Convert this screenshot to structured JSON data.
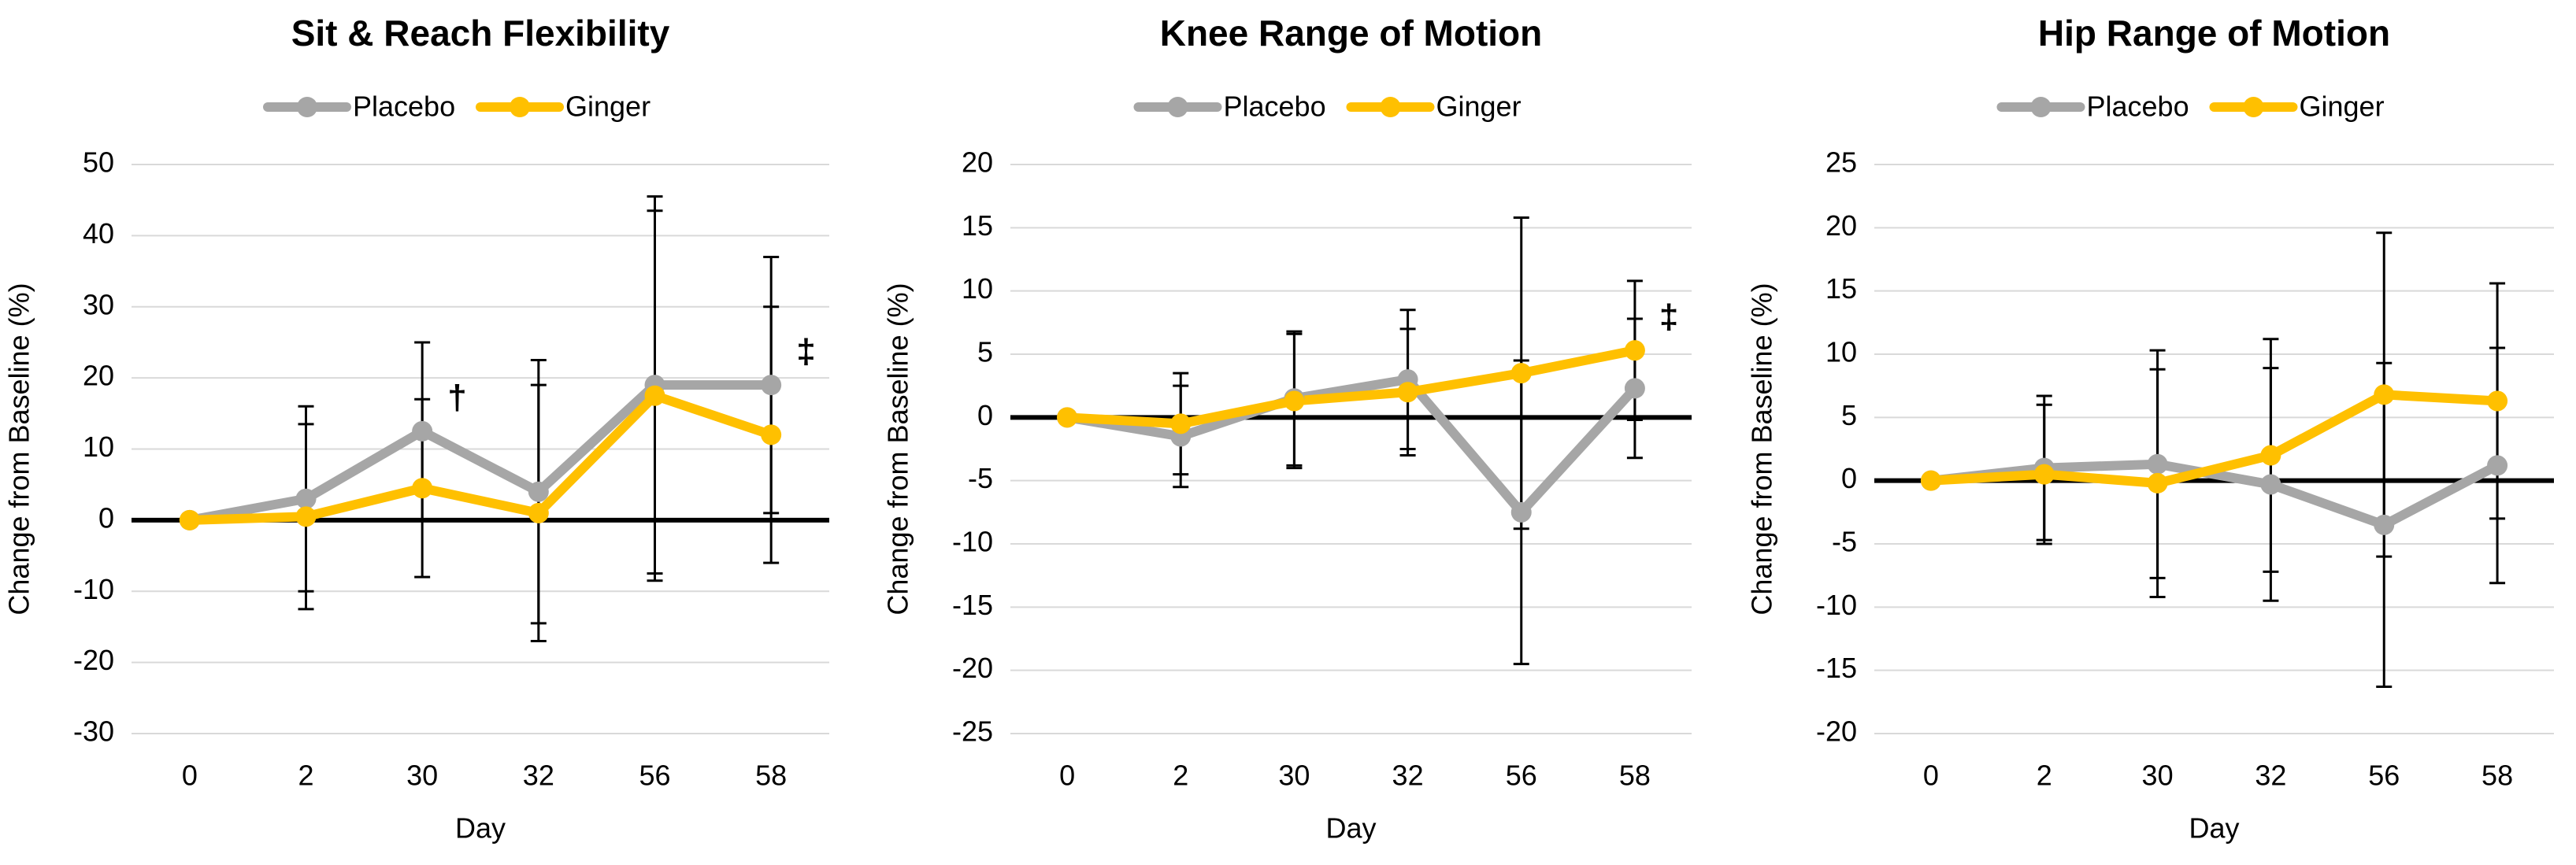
{
  "chart_data": [
    {
      "type": "line",
      "title": "Sit & Reach Flexibility",
      "x_label": "Day",
      "y_label": "Change from Baseline (%)",
      "categories": [
        "0",
        "2",
        "30",
        "32",
        "56",
        "58"
      ],
      "ylim": [
        -30,
        50
      ],
      "yticks": [
        -30,
        -20,
        -10,
        0,
        10,
        20,
        30,
        40,
        50
      ],
      "grid": true,
      "series": [
        {
          "name": "Placebo",
          "color": "#a6a6a6",
          "values": [
            0,
            3,
            12.5,
            4,
            19,
            19
          ],
          "errors": [
            0,
            13,
            12.5,
            18.5,
            26.5,
            18
          ]
        },
        {
          "name": "Ginger",
          "color": "#ffc000",
          "values": [
            0,
            0.5,
            4.5,
            1,
            17.5,
            12
          ],
          "errors": [
            0,
            13,
            12.5,
            18,
            26,
            18
          ]
        }
      ],
      "annotations": [
        {
          "text": "†",
          "color": "#a6a6a6",
          "x": "30"
        },
        {
          "text": "‡",
          "color": "#a6a6a6",
          "x": "58"
        }
      ]
    },
    {
      "type": "line",
      "title": "Knee Range of Motion",
      "x_label": "Day",
      "y_label": "Change from Baseline (%)",
      "categories": [
        "0",
        "2",
        "30",
        "32",
        "56",
        "58"
      ],
      "ylim": [
        -25,
        20
      ],
      "yticks": [
        -25,
        -20,
        -15,
        -10,
        -5,
        0,
        5,
        10,
        15,
        20
      ],
      "grid": true,
      "series": [
        {
          "name": "Placebo",
          "color": "#a6a6a6",
          "values": [
            0,
            -1.5,
            1.5,
            3,
            -7.5,
            2.3
          ],
          "errors": [
            0,
            4,
            5.3,
            5.5,
            12,
            5.5
          ]
        },
        {
          "name": "Ginger",
          "color": "#ffc000",
          "values": [
            0,
            -0.5,
            1.3,
            2,
            3.5,
            5.3
          ],
          "errors": [
            0,
            4,
            5.3,
            5,
            12.3,
            5.5
          ]
        }
      ],
      "annotations": [
        {
          "text": "‡",
          "color": "#ffc000",
          "x": "58"
        }
      ]
    },
    {
      "type": "line",
      "title": "Hip Range of Motion",
      "x_label": "Day",
      "y_label": "Change from Baseline (%)",
      "categories": [
        "0",
        "2",
        "30",
        "32",
        "56",
        "58"
      ],
      "ylim": [
        -20,
        25
      ],
      "yticks": [
        -20,
        -15,
        -10,
        -5,
        0,
        5,
        10,
        15,
        20,
        25
      ],
      "grid": true,
      "series": [
        {
          "name": "Placebo",
          "color": "#a6a6a6",
          "values": [
            0,
            1,
            1.3,
            -0.3,
            -3.5,
            1.2
          ],
          "errors": [
            0,
            5.7,
            9,
            9.2,
            12.8,
            9.3
          ]
        },
        {
          "name": "Ginger",
          "color": "#ffc000",
          "values": [
            0,
            0.5,
            -0.2,
            2,
            6.8,
            6.3
          ],
          "errors": [
            0,
            5.5,
            9,
            9.2,
            12.8,
            9.3
          ]
        }
      ],
      "annotations": []
    }
  ]
}
